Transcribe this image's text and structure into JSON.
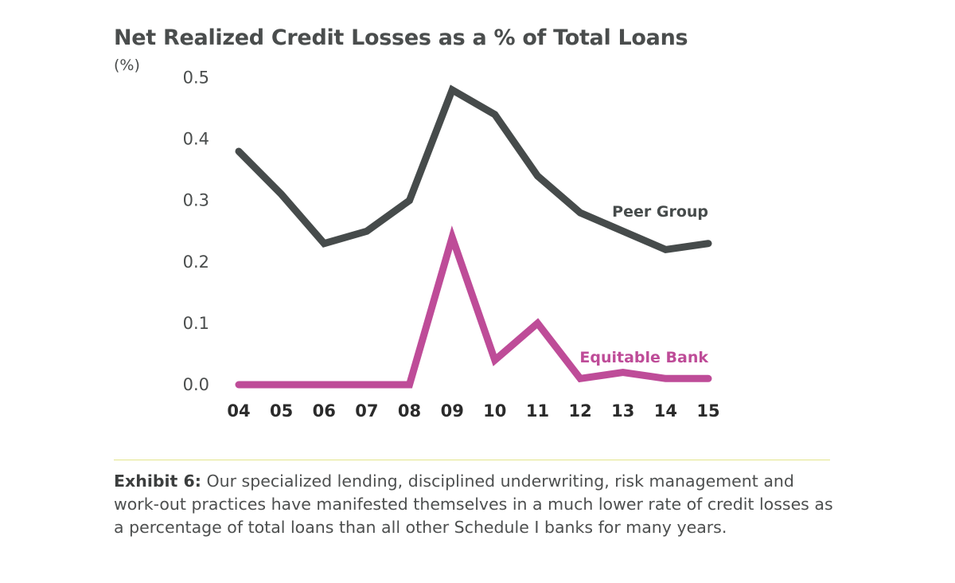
{
  "chart_data": {
    "type": "line",
    "title": "Net Realized Credit Losses as a % of Total Loans",
    "ylabel": "(%)",
    "xlabel": "",
    "categories": [
      "04",
      "05",
      "06",
      "07",
      "08",
      "09",
      "10",
      "11",
      "12",
      "13",
      "14",
      "15"
    ],
    "ylim": [
      0,
      0.5
    ],
    "yticks": [
      "0.0",
      "0.1",
      "0.2",
      "0.3",
      "0.4",
      "0.5"
    ],
    "grid": false,
    "series": [
      {
        "name": "Peer Group",
        "color": "#464b4b",
        "values": [
          0.38,
          0.31,
          0.23,
          0.25,
          0.3,
          0.48,
          0.44,
          0.34,
          0.28,
          0.25,
          0.22,
          0.23
        ]
      },
      {
        "name": "Equitable Bank",
        "color": "#be4c98",
        "values": [
          0.0,
          0.0,
          0.0,
          0.0,
          0.0,
          0.24,
          0.04,
          0.1,
          0.01,
          0.02,
          0.01,
          0.01
        ]
      }
    ]
  },
  "caption": {
    "label": "Exhibit 6:",
    "text": " Our specialized lending, disciplined underwriting, risk management and work-out practices have manifested themselves in a much lower rate of credit losses as a percentage of total loans than all other Schedule I banks for many years."
  }
}
